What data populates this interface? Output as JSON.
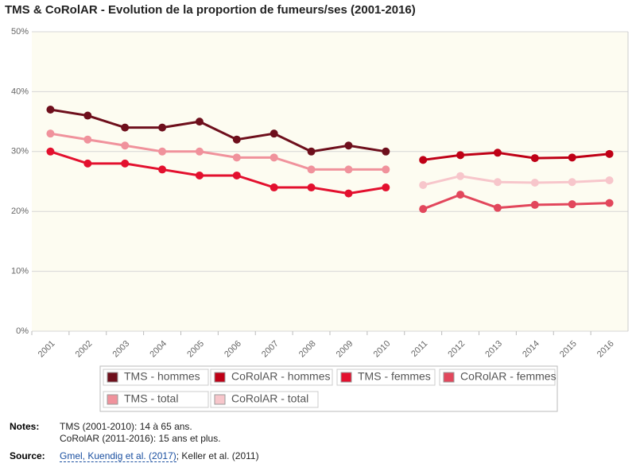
{
  "chart_data": {
    "type": "line",
    "title": "TMS & CoRolAR - Evolution de la proportion de fumeurs/ses (2001-2016)",
    "categories": [
      "2001",
      "2002",
      "2003",
      "2004",
      "2005",
      "2006",
      "2007",
      "2008",
      "2009",
      "2010",
      "2011",
      "2012",
      "2013",
      "2014",
      "2015",
      "2016"
    ],
    "series": [
      {
        "name": "TMS - hommes",
        "color": "#6e0f1c",
        "values": [
          37,
          36,
          34,
          34,
          35,
          32,
          33,
          30,
          31,
          30,
          null,
          null,
          null,
          null,
          null,
          null
        ]
      },
      {
        "name": "CoRolAR - hommes",
        "color": "#bf0016",
        "values": [
          null,
          null,
          null,
          null,
          null,
          null,
          null,
          null,
          null,
          null,
          28.6,
          29.4,
          29.8,
          28.9,
          29.0,
          29.6
        ]
      },
      {
        "name": "TMS - femmes",
        "color": "#e3102e",
        "values": [
          30,
          28,
          28,
          27,
          26,
          26,
          24,
          24,
          23,
          24,
          null,
          null,
          null,
          null,
          null,
          null
        ]
      },
      {
        "name": "CoRolAR - femmes",
        "color": "#e2475c",
        "values": [
          null,
          null,
          null,
          null,
          null,
          null,
          null,
          null,
          null,
          null,
          20.4,
          22.8,
          20.6,
          21.1,
          21.2,
          21.4
        ]
      },
      {
        "name": "TMS - total",
        "color": "#f0929c",
        "values": [
          33,
          32,
          31,
          30,
          30,
          29,
          29,
          27,
          27,
          27,
          null,
          null,
          null,
          null,
          null,
          null
        ]
      },
      {
        "name": "CoRolAR - total",
        "color": "#f7c6cb",
        "values": [
          null,
          null,
          null,
          null,
          null,
          null,
          null,
          null,
          null,
          null,
          24.4,
          25.9,
          24.9,
          24.8,
          24.9,
          25.2
        ]
      }
    ],
    "ylim": [
      0,
      50
    ],
    "yticks": [
      {
        "value": 0,
        "label": "0%"
      },
      {
        "value": 10,
        "label": "10%"
      },
      {
        "value": 20,
        "label": "20%"
      },
      {
        "value": 30,
        "label": "30%"
      },
      {
        "value": 40,
        "label": "40%"
      },
      {
        "value": 50,
        "label": "50%"
      }
    ],
    "grid": true
  },
  "notes": {
    "label": "Notes:",
    "lines": [
      "TMS (2001-2010): 14 à 65 ans.",
      "CoRolAR (2011-2016): 15 ans et plus."
    ]
  },
  "source": {
    "label": "Source:",
    "link": "Gmel, Kuendig et al. (2017)",
    "rest": "; Keller et al. (2011)"
  }
}
